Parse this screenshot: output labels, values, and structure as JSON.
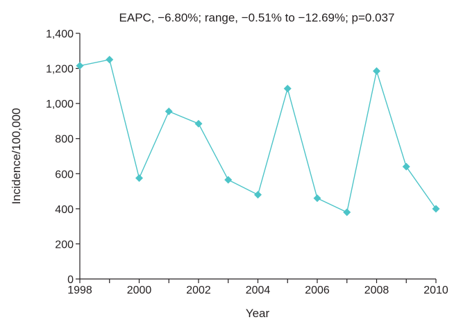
{
  "chart_data": {
    "type": "line",
    "title": "EAPC, −6.80%; range, −0.51% to −12.69%; p=0.037",
    "xlabel": "Year",
    "ylabel": "Incidence/100,000",
    "xlim": [
      1998,
      2010
    ],
    "ylim": [
      0,
      1400
    ],
    "x_ticks": [
      1998,
      2000,
      2002,
      2004,
      2006,
      2008,
      2010
    ],
    "y_ticks": [
      0,
      200,
      400,
      600,
      800,
      1000,
      1200,
      1400
    ],
    "x_tick_labels": [
      "1998",
      "2000",
      "2002",
      "2004",
      "2006",
      "2008",
      "2010"
    ],
    "y_tick_labels": [
      "0",
      "200",
      "400",
      "600",
      "800",
      "1,000",
      "1,200",
      "1,400"
    ],
    "grid": false,
    "marker": "diamond",
    "colors": {
      "series": "#4cc4c8",
      "marker": "#4cc4c8",
      "axis": "#231f20"
    },
    "series": [
      {
        "x": [
          1998,
          1999,
          2000,
          2001,
          2002,
          2003,
          2004,
          2005,
          2006,
          2007,
          2008,
          2009,
          2010
        ],
        "values": [
          1215,
          1250,
          575,
          955,
          885,
          565,
          480,
          1085,
          460,
          380,
          1185,
          640,
          400
        ]
      }
    ]
  }
}
